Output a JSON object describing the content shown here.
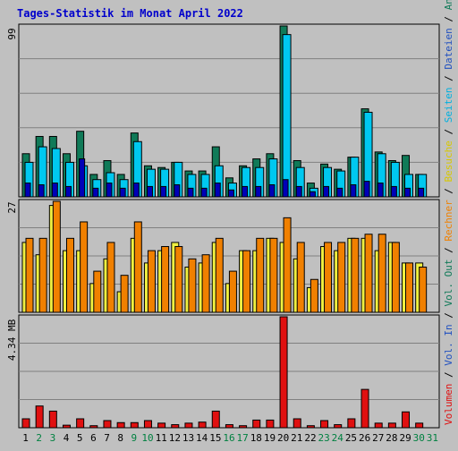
{
  "title": "Tages-Statistik im Monat April 2022",
  "colors": {
    "background": "#c0c0c0",
    "grid": "#808080",
    "anfragen": "#107a58",
    "dateien": "#00c8f0",
    "seiten": "#0000b8",
    "besuche": "#f0f040",
    "rechner": "#f08000",
    "volumen": "#e01010",
    "title": "#0000cc"
  },
  "labels": {
    "top_max": "99",
    "mid_max": "27",
    "bot_max": "4.34 MB"
  },
  "legend": [
    {
      "text": "Volumen",
      "color": "#e01010",
      "sep": " / "
    },
    {
      "text": "Vol. In",
      "color": "#2050c0",
      "sep": " / "
    },
    {
      "text": "Vol. Out",
      "color": "#107a58",
      "sep": " / "
    },
    {
      "text": "Rechner",
      "color": "#f08000",
      "sep": " / "
    },
    {
      "text": "Besuche",
      "color": "#d8c800",
      "sep": " / "
    },
    {
      "text": "Seiten",
      "color": "#00b0e0",
      "sep": " / "
    },
    {
      "text": "Dateien",
      "color": "#2050c0",
      "sep": " / "
    },
    {
      "text": "Anfragen",
      "color": "#107a58",
      "sep": ""
    }
  ],
  "chart_data": [
    {
      "type": "bar",
      "ylim": [
        0,
        99
      ],
      "categories": [
        "1",
        "2",
        "3",
        "4",
        "5",
        "6",
        "7",
        "8",
        "9",
        "10",
        "11",
        "12",
        "13",
        "14",
        "15",
        "16",
        "17",
        "18",
        "19",
        "20",
        "21",
        "22",
        "23",
        "24",
        "25",
        "26",
        "27",
        "28",
        "29",
        "30",
        "31"
      ],
      "weekend_days": [
        "2",
        "3",
        "9",
        "10",
        "16",
        "17",
        "23",
        "24",
        "30",
        "31"
      ],
      "series": [
        {
          "name": "Anfragen",
          "values": [
            25,
            35,
            35,
            25,
            38,
            13,
            21,
            13,
            37,
            18,
            17,
            20,
            15,
            15,
            29,
            11,
            18,
            22,
            25,
            99,
            21,
            8,
            19,
            16,
            23,
            51,
            26,
            21,
            24,
            13,
            null
          ]
        },
        {
          "name": "Dateien",
          "values": [
            20,
            29,
            28,
            20,
            18,
            10,
            14,
            10,
            32,
            16,
            16,
            20,
            13,
            13,
            18,
            8,
            17,
            17,
            22,
            94,
            17,
            5,
            17,
            15,
            23,
            49,
            25,
            20,
            13,
            13,
            null
          ]
        },
        {
          "name": "Seiten",
          "values": [
            8,
            7,
            8,
            6,
            22,
            5,
            8,
            5,
            8,
            6,
            6,
            7,
            5,
            5,
            8,
            4,
            6,
            6,
            7,
            10,
            6,
            3,
            6,
            5,
            7,
            9,
            8,
            6,
            5,
            5,
            null
          ]
        }
      ]
    },
    {
      "type": "bar",
      "ylim": [
        0,
        27
      ],
      "categories": [
        "1",
        "2",
        "3",
        "4",
        "5",
        "6",
        "7",
        "8",
        "9",
        "10",
        "11",
        "12",
        "13",
        "14",
        "15",
        "16",
        "17",
        "18",
        "19",
        "20",
        "21",
        "22",
        "23",
        "24",
        "25",
        "26",
        "27",
        "28",
        "29",
        "30",
        "31"
      ],
      "series": [
        {
          "name": "Besuche",
          "values": [
            17,
            14,
            26,
            15,
            15,
            7,
            13,
            5,
            18,
            12,
            15,
            17,
            11,
            12,
            17,
            7,
            15,
            15,
            18,
            17,
            13,
            6,
            16,
            15,
            18,
            18,
            15,
            17,
            12,
            12,
            null
          ]
        },
        {
          "name": "Rechner",
          "values": [
            18,
            18,
            27,
            18,
            22,
            10,
            17,
            9,
            22,
            15,
            16,
            16,
            13,
            14,
            18,
            10,
            15,
            18,
            18,
            23,
            17,
            8,
            17,
            17,
            18,
            19,
            19,
            17,
            12,
            11,
            null
          ]
        }
      ]
    },
    {
      "type": "bar",
      "ylim": [
        0,
        4.34
      ],
      "ylabel": "MB",
      "categories": [
        "1",
        "2",
        "3",
        "4",
        "5",
        "6",
        "7",
        "8",
        "9",
        "10",
        "11",
        "12",
        "13",
        "14",
        "15",
        "16",
        "17",
        "18",
        "19",
        "20",
        "21",
        "22",
        "23",
        "24",
        "25",
        "26",
        "27",
        "28",
        "29",
        "30",
        "31"
      ],
      "series": [
        {
          "name": "Volumen",
          "values": [
            0.35,
            0.85,
            0.65,
            0.1,
            0.35,
            0.08,
            0.28,
            0.2,
            0.2,
            0.28,
            0.18,
            0.12,
            0.18,
            0.22,
            0.65,
            0.12,
            0.08,
            0.3,
            0.3,
            4.34,
            0.35,
            0.08,
            0.28,
            0.12,
            0.35,
            1.5,
            0.18,
            0.18,
            0.62,
            0.18,
            null
          ]
        }
      ]
    }
  ]
}
